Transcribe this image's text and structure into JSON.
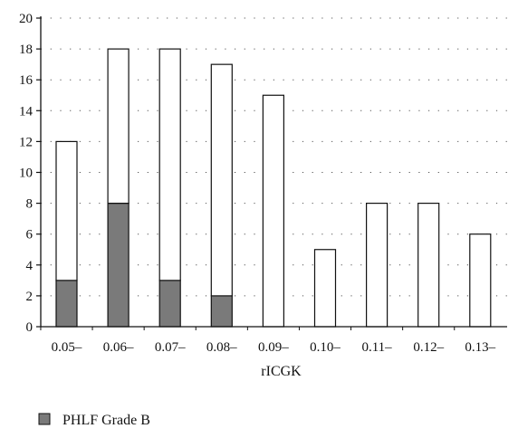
{
  "chart_data": {
    "type": "bar",
    "stacked": true,
    "title": "",
    "xlabel": "rICGK",
    "ylabel": "",
    "ylim": [
      0,
      20
    ],
    "yticks": [
      0,
      2,
      4,
      6,
      8,
      10,
      12,
      14,
      16,
      18,
      20
    ],
    "grid": "horizontal dotted",
    "legend_position": "bottom-left",
    "categories": [
      "0.05–",
      "0.06–",
      "0.07–",
      "0.08–",
      "0.09–",
      "0.10–",
      "0.11–",
      "0.12–",
      "0.13–"
    ],
    "series": [
      {
        "name": "PHLF Grade B",
        "values": [
          3,
          8,
          3,
          2,
          0,
          0,
          0,
          0,
          0
        ],
        "color": "#7a7a7a"
      },
      {
        "values": [
          9,
          10,
          15,
          15,
          15,
          5,
          8,
          8,
          6
        ],
        "color": "#ffffff"
      }
    ],
    "totals": [
      12,
      18,
      18,
      17,
      15,
      5,
      8,
      8,
      6
    ]
  }
}
